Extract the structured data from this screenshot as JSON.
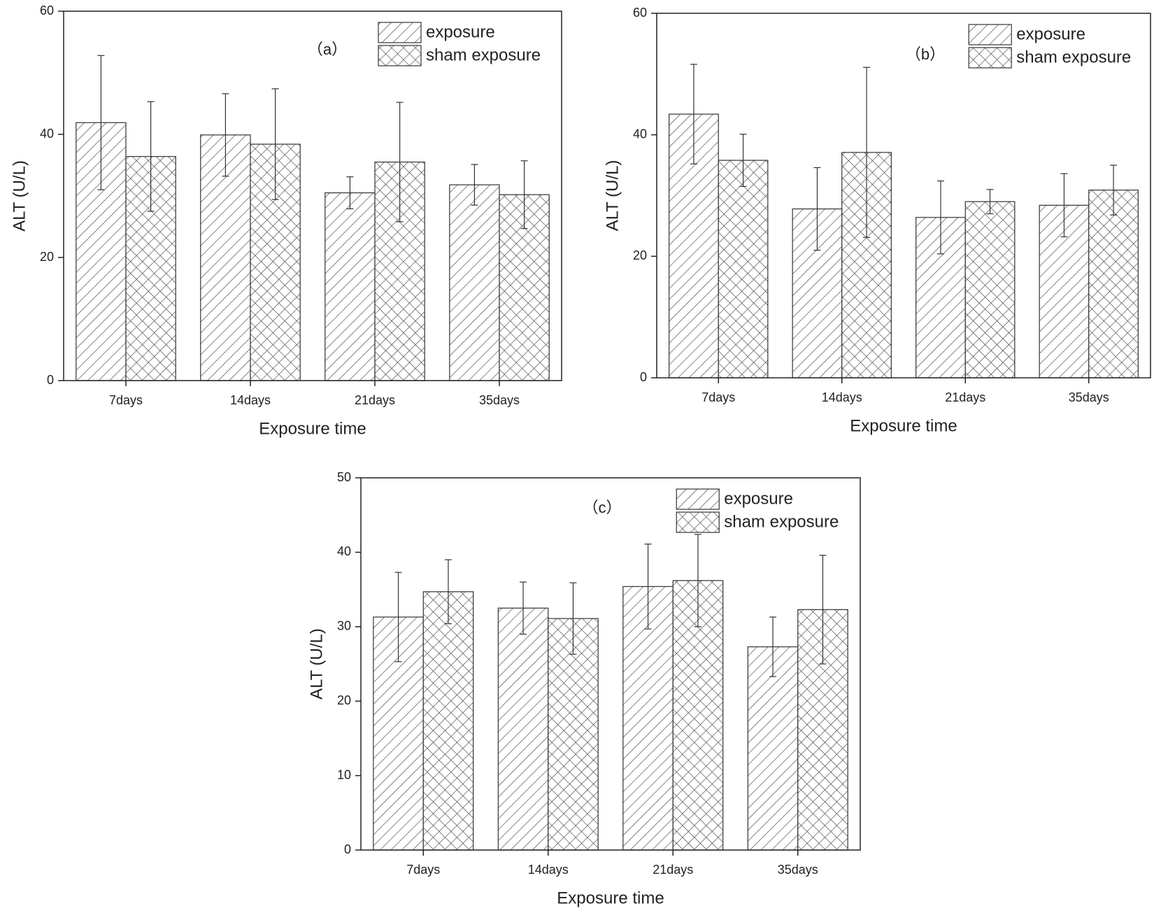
{
  "chart_data": [
    {
      "type": "bar",
      "annotation": "（a）",
      "x_label": "Exposure time",
      "y_label": "ALT (U/L)",
      "categories": [
        "7days",
        "14days",
        "21days",
        "35days"
      ],
      "series": [
        {
          "name": "exposure",
          "pattern": "hatch",
          "color": "#333333",
          "values": [
            41.9,
            39.9,
            30.5,
            31.8
          ],
          "errors": [
            10.9,
            6.7,
            2.6,
            3.3
          ]
        },
        {
          "name": "sham exposure",
          "pattern": "crosshatch",
          "color": "#333333",
          "values": [
            36.4,
            38.4,
            35.5,
            30.2
          ],
          "errors": [
            8.9,
            9.0,
            9.7,
            5.5
          ]
        }
      ],
      "ylim": [
        0,
        60
      ],
      "yticks": [
        0,
        20,
        40,
        60
      ]
    },
    {
      "type": "bar",
      "annotation": "（b）",
      "x_label": "Exposure time",
      "y_label": "ALT (U/L)",
      "categories": [
        "7days",
        "14days",
        "21days",
        "35days"
      ],
      "series": [
        {
          "name": "exposure",
          "pattern": "hatch",
          "color": "#333333",
          "values": [
            43.4,
            27.8,
            26.4,
            28.4
          ],
          "errors": [
            8.2,
            6.8,
            6.0,
            5.2
          ]
        },
        {
          "name": "sham exposure",
          "pattern": "crosshatch",
          "color": "#333333",
          "values": [
            35.8,
            37.1,
            29.0,
            30.9
          ],
          "errors": [
            4.3,
            14.0,
            2.0,
            4.1
          ]
        }
      ],
      "ylim": [
        0,
        60
      ],
      "yticks": [
        0,
        20,
        40,
        60
      ]
    },
    {
      "type": "bar",
      "annotation": "（c）",
      "x_label": "Exposure time",
      "y_label": "ALT (U/L)",
      "categories": [
        "7days",
        "14days",
        "21days",
        "35days"
      ],
      "series": [
        {
          "name": "exposure",
          "pattern": "hatch",
          "color": "#333333",
          "values": [
            31.3,
            32.5,
            35.4,
            27.3
          ],
          "errors": [
            6.0,
            3.5,
            5.7,
            4.0
          ]
        },
        {
          "name": "sham exposure",
          "pattern": "crosshatch",
          "color": "#333333",
          "values": [
            34.7,
            31.1,
            36.2,
            32.3
          ],
          "errors": [
            4.3,
            4.8,
            6.2,
            7.3
          ]
        }
      ],
      "ylim": [
        0,
        50
      ],
      "yticks": [
        0,
        10,
        20,
        30,
        40,
        50
      ]
    }
  ]
}
